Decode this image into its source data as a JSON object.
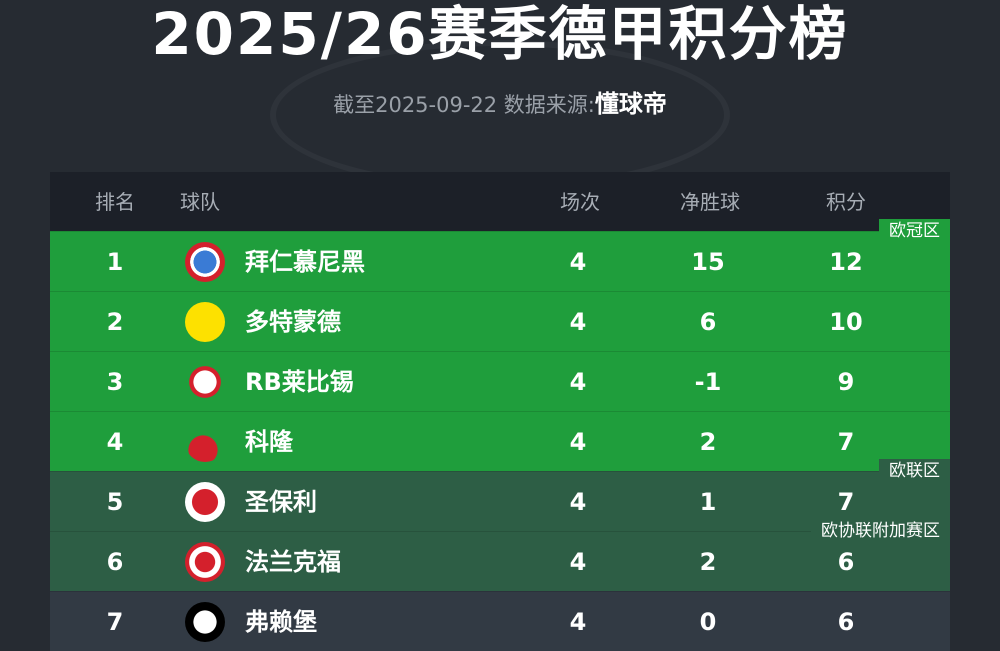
{
  "title": "2025/26赛季德甲积分榜",
  "subtitle": "截至2025-09-22 数据来源:",
  "source": "懂球帝",
  "headers": {
    "rank": "排名",
    "team": "球队",
    "played": "场次",
    "gd": "净胜球",
    "pts": "积分"
  },
  "zones": {
    "cl": "欧冠区",
    "el": "欧联区",
    "ecl": "欧协联附加赛区"
  },
  "colors": {
    "cl": "#1f9e3c",
    "el": "#2d5e45",
    "other": "#323a44"
  },
  "rows": [
    {
      "rank": "1",
      "team": "拜仁慕尼黑",
      "played": "4",
      "gd": "15",
      "pts": "12"
    },
    {
      "rank": "2",
      "team": "多特蒙德",
      "played": "4",
      "gd": "6",
      "pts": "10"
    },
    {
      "rank": "3",
      "team": "RB莱比锡",
      "played": "4",
      "gd": "-1",
      "pts": "9"
    },
    {
      "rank": "4",
      "team": "科隆",
      "played": "4",
      "gd": "2",
      "pts": "7"
    },
    {
      "rank": "5",
      "team": "圣保利",
      "played": "4",
      "gd": "1",
      "pts": "7"
    },
    {
      "rank": "6",
      "team": "法兰克福",
      "played": "4",
      "gd": "2",
      "pts": "6"
    },
    {
      "rank": "7",
      "team": "弗赖堡",
      "played": "4",
      "gd": "0",
      "pts": "6"
    }
  ]
}
